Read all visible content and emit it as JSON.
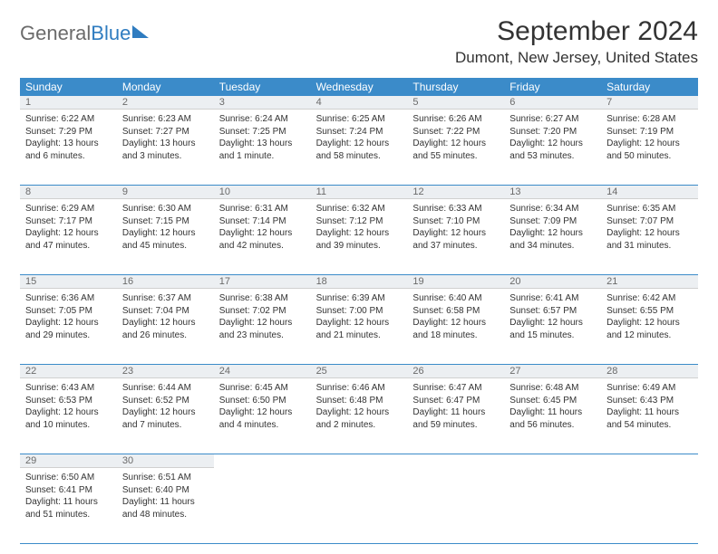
{
  "logo": {
    "text1": "General",
    "text2": "Blue"
  },
  "title": "September 2024",
  "location": "Dumont, New Jersey, United States",
  "colors": {
    "header_bg": "#3b8bc9",
    "header_text": "#ffffff",
    "daynum_bg": "#eceff2",
    "daynum_text": "#6a6a6a",
    "body_text": "#333333",
    "logo_gray": "#6b6b6b",
    "logo_blue": "#2f7cc0",
    "row_border": "#3b8bc9"
  },
  "weekdays": [
    "Sunday",
    "Monday",
    "Tuesday",
    "Wednesday",
    "Thursday",
    "Friday",
    "Saturday"
  ],
  "weeks": [
    [
      {
        "num": "1",
        "sunrise": "6:22 AM",
        "sunset": "7:29 PM",
        "daylight": "13 hours and 6 minutes."
      },
      {
        "num": "2",
        "sunrise": "6:23 AM",
        "sunset": "7:27 PM",
        "daylight": "13 hours and 3 minutes."
      },
      {
        "num": "3",
        "sunrise": "6:24 AM",
        "sunset": "7:25 PM",
        "daylight": "13 hours and 1 minute."
      },
      {
        "num": "4",
        "sunrise": "6:25 AM",
        "sunset": "7:24 PM",
        "daylight": "12 hours and 58 minutes."
      },
      {
        "num": "5",
        "sunrise": "6:26 AM",
        "sunset": "7:22 PM",
        "daylight": "12 hours and 55 minutes."
      },
      {
        "num": "6",
        "sunrise": "6:27 AM",
        "sunset": "7:20 PM",
        "daylight": "12 hours and 53 minutes."
      },
      {
        "num": "7",
        "sunrise": "6:28 AM",
        "sunset": "7:19 PM",
        "daylight": "12 hours and 50 minutes."
      }
    ],
    [
      {
        "num": "8",
        "sunrise": "6:29 AM",
        "sunset": "7:17 PM",
        "daylight": "12 hours and 47 minutes."
      },
      {
        "num": "9",
        "sunrise": "6:30 AM",
        "sunset": "7:15 PM",
        "daylight": "12 hours and 45 minutes."
      },
      {
        "num": "10",
        "sunrise": "6:31 AM",
        "sunset": "7:14 PM",
        "daylight": "12 hours and 42 minutes."
      },
      {
        "num": "11",
        "sunrise": "6:32 AM",
        "sunset": "7:12 PM",
        "daylight": "12 hours and 39 minutes."
      },
      {
        "num": "12",
        "sunrise": "6:33 AM",
        "sunset": "7:10 PM",
        "daylight": "12 hours and 37 minutes."
      },
      {
        "num": "13",
        "sunrise": "6:34 AM",
        "sunset": "7:09 PM",
        "daylight": "12 hours and 34 minutes."
      },
      {
        "num": "14",
        "sunrise": "6:35 AM",
        "sunset": "7:07 PM",
        "daylight": "12 hours and 31 minutes."
      }
    ],
    [
      {
        "num": "15",
        "sunrise": "6:36 AM",
        "sunset": "7:05 PM",
        "daylight": "12 hours and 29 minutes."
      },
      {
        "num": "16",
        "sunrise": "6:37 AM",
        "sunset": "7:04 PM",
        "daylight": "12 hours and 26 minutes."
      },
      {
        "num": "17",
        "sunrise": "6:38 AM",
        "sunset": "7:02 PM",
        "daylight": "12 hours and 23 minutes."
      },
      {
        "num": "18",
        "sunrise": "6:39 AM",
        "sunset": "7:00 PM",
        "daylight": "12 hours and 21 minutes."
      },
      {
        "num": "19",
        "sunrise": "6:40 AM",
        "sunset": "6:58 PM",
        "daylight": "12 hours and 18 minutes."
      },
      {
        "num": "20",
        "sunrise": "6:41 AM",
        "sunset": "6:57 PM",
        "daylight": "12 hours and 15 minutes."
      },
      {
        "num": "21",
        "sunrise": "6:42 AM",
        "sunset": "6:55 PM",
        "daylight": "12 hours and 12 minutes."
      }
    ],
    [
      {
        "num": "22",
        "sunrise": "6:43 AM",
        "sunset": "6:53 PM",
        "daylight": "12 hours and 10 minutes."
      },
      {
        "num": "23",
        "sunrise": "6:44 AM",
        "sunset": "6:52 PM",
        "daylight": "12 hours and 7 minutes."
      },
      {
        "num": "24",
        "sunrise": "6:45 AM",
        "sunset": "6:50 PM",
        "daylight": "12 hours and 4 minutes."
      },
      {
        "num": "25",
        "sunrise": "6:46 AM",
        "sunset": "6:48 PM",
        "daylight": "12 hours and 2 minutes."
      },
      {
        "num": "26",
        "sunrise": "6:47 AM",
        "sunset": "6:47 PM",
        "daylight": "11 hours and 59 minutes."
      },
      {
        "num": "27",
        "sunrise": "6:48 AM",
        "sunset": "6:45 PM",
        "daylight": "11 hours and 56 minutes."
      },
      {
        "num": "28",
        "sunrise": "6:49 AM",
        "sunset": "6:43 PM",
        "daylight": "11 hours and 54 minutes."
      }
    ],
    [
      {
        "num": "29",
        "sunrise": "6:50 AM",
        "sunset": "6:41 PM",
        "daylight": "11 hours and 51 minutes."
      },
      {
        "num": "30",
        "sunrise": "6:51 AM",
        "sunset": "6:40 PM",
        "daylight": "11 hours and 48 minutes."
      },
      null,
      null,
      null,
      null,
      null
    ]
  ],
  "labels": {
    "sunrise": "Sunrise:",
    "sunset": "Sunset:",
    "daylight": "Daylight:"
  }
}
